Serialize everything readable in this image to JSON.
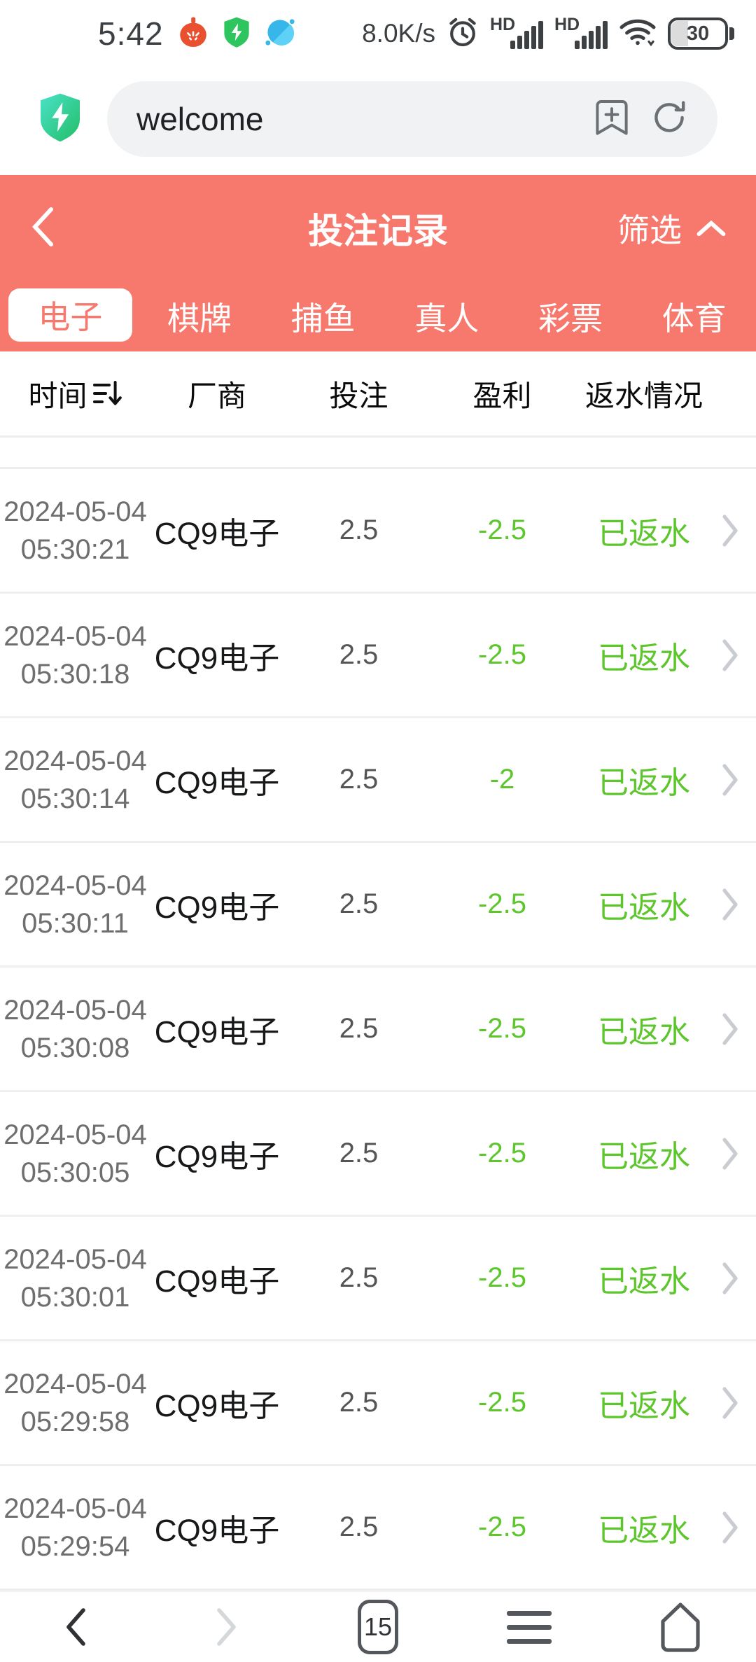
{
  "colors": {
    "accent": "#F7796D",
    "positive_green": "#5CC62C",
    "page_bg": "#FFFFFF"
  },
  "status_bar": {
    "time": "5:42",
    "network_speed": "8.0K/s",
    "sim1_label": "HD",
    "sim2_label": "HD",
    "battery_level": "30"
  },
  "browser_bar": {
    "url_text": "welcome"
  },
  "header": {
    "title": "投注记录",
    "filter_label": "筛选"
  },
  "tabs": [
    {
      "label": "电子",
      "active": true
    },
    {
      "label": "棋牌",
      "active": false
    },
    {
      "label": "捕鱼",
      "active": false
    },
    {
      "label": "真人",
      "active": false
    },
    {
      "label": "彩票",
      "active": false
    },
    {
      "label": "体育",
      "active": false
    }
  ],
  "table": {
    "columns": [
      "时间",
      "厂商",
      "投注",
      "盈利",
      "返水情况"
    ],
    "rows": [
      {
        "date": "2024-05-04",
        "time": "05:30:21",
        "vendor": "CQ9电子",
        "bet": "2.5",
        "profit": "-2.5",
        "rebate": "已返水"
      },
      {
        "date": "2024-05-04",
        "time": "05:30:18",
        "vendor": "CQ9电子",
        "bet": "2.5",
        "profit": "-2.5",
        "rebate": "已返水"
      },
      {
        "date": "2024-05-04",
        "time": "05:30:14",
        "vendor": "CQ9电子",
        "bet": "2.5",
        "profit": "-2",
        "rebate": "已返水"
      },
      {
        "date": "2024-05-04",
        "time": "05:30:11",
        "vendor": "CQ9电子",
        "bet": "2.5",
        "profit": "-2.5",
        "rebate": "已返水"
      },
      {
        "date": "2024-05-04",
        "time": "05:30:08",
        "vendor": "CQ9电子",
        "bet": "2.5",
        "profit": "-2.5",
        "rebate": "已返水"
      },
      {
        "date": "2024-05-04",
        "time": "05:30:05",
        "vendor": "CQ9电子",
        "bet": "2.5",
        "profit": "-2.5",
        "rebate": "已返水"
      },
      {
        "date": "2024-05-04",
        "time": "05:30:01",
        "vendor": "CQ9电子",
        "bet": "2.5",
        "profit": "-2.5",
        "rebate": "已返水"
      },
      {
        "date": "2024-05-04",
        "time": "05:29:58",
        "vendor": "CQ9电子",
        "bet": "2.5",
        "profit": "-2.5",
        "rebate": "已返水"
      },
      {
        "date": "2024-05-04",
        "time": "05:29:54",
        "vendor": "CQ9电子",
        "bet": "2.5",
        "profit": "-2.5",
        "rebate": "已返水"
      }
    ]
  },
  "bottom_nav": {
    "tab_count": "15"
  }
}
